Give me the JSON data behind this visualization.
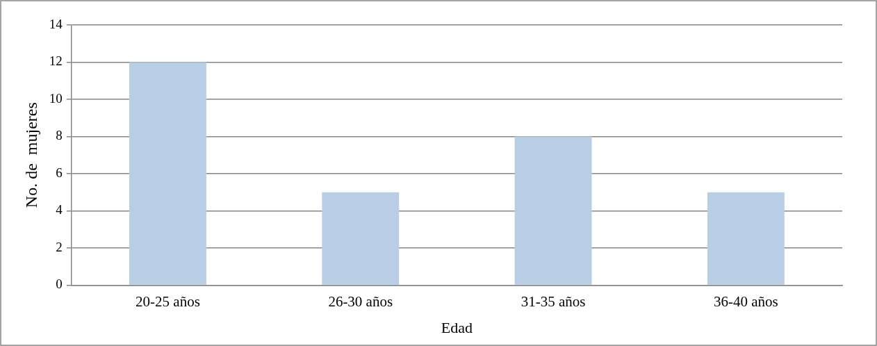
{
  "chart_data": {
    "type": "bar",
    "xlabel": "Edad",
    "ylabel": "No. de  mujeres",
    "categories": [
      "20-25 años",
      "26-30 años",
      "31-35 años",
      "36-40 años"
    ],
    "values": [
      12,
      5,
      8,
      5
    ],
    "color": "#b9cde5",
    "ylim": [
      0,
      14
    ],
    "yticks": [
      0,
      2,
      4,
      6,
      8,
      10,
      12,
      14
    ],
    "grid": "y",
    "legend": false
  }
}
